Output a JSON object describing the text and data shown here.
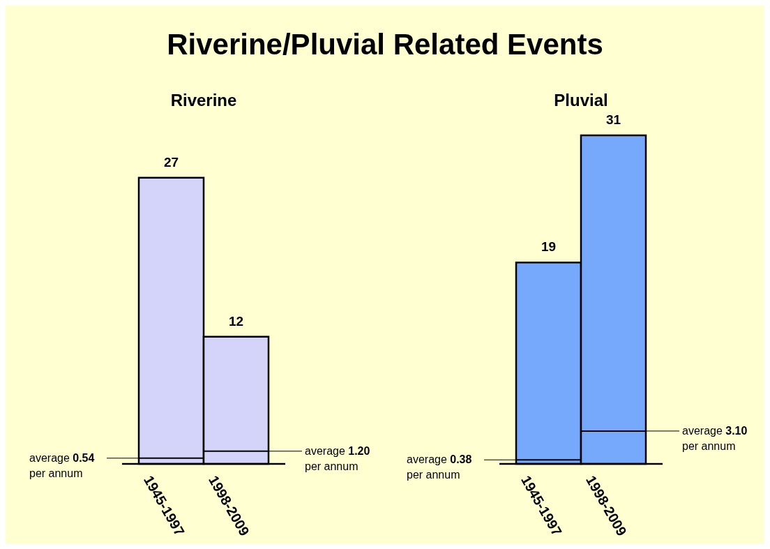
{
  "chart_data": [
    {
      "type": "bar",
      "title": "Riverine/Pluvial Related Events",
      "subtitle": "Riverine",
      "categories": [
        "1945-1997",
        "1998-2009"
      ],
      "values": [
        27,
        12
      ],
      "colors": [
        "#d4d4fa",
        "#d4d4fa"
      ],
      "data_labels": true,
      "ref_lines": [
        {
          "axis": "y",
          "value": 0.54,
          "label": "average 0.54\nper annum"
        },
        {
          "axis": "y",
          "value": 1.2,
          "label": "average 1.20\nper annum"
        }
      ]
    },
    {
      "type": "bar",
      "subtitle": "Pluvial",
      "categories": [
        "1945-1997",
        "1998-2009"
      ],
      "values": [
        19,
        31
      ],
      "colors": [
        "#76a9fb",
        "#76a9fb"
      ],
      "data_labels": true,
      "ref_lines": [
        {
          "axis": "y",
          "value": 0.38,
          "label": "average 0.38\nper annum"
        },
        {
          "axis": "y",
          "value": 3.1,
          "label": "average 3.10\nper annum"
        }
      ]
    }
  ]
}
